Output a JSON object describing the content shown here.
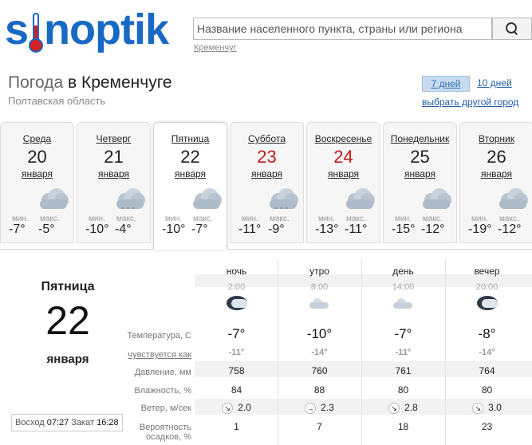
{
  "header": {
    "logo_pre": "s",
    "logo_post": "noptik",
    "search_placeholder": "Название населенного пункта, страны или региона",
    "recent_city": "Кременчуг"
  },
  "location": {
    "title_prefix": "Погода",
    "title_city": "в Кременчуге",
    "region": "Полтавская область"
  },
  "range": {
    "days7": "7 дней",
    "days10": "10 дней",
    "other_city": "выбрать другой город"
  },
  "days": [
    {
      "name": "Среда",
      "date": "20",
      "month": "января",
      "min_label": "мин.",
      "max_label": "макс.",
      "min": "-7°",
      "max": "-5°",
      "icon": "cloudy-icon",
      "weekend": false
    },
    {
      "name": "Четверг",
      "date": "21",
      "month": "января",
      "min_label": "мин.",
      "max_label": "макс.",
      "min": "-10°",
      "max": "-4°",
      "icon": "cloudy-snow-icon",
      "weekend": false
    },
    {
      "name": "Пятница",
      "date": "22",
      "month": "января",
      "min_label": "мин.",
      "max_label": "макс.",
      "min": "-10°",
      "max": "-7°",
      "icon": "cloudy-icon",
      "weekend": false
    },
    {
      "name": "Суббота",
      "date": "23",
      "month": "января",
      "min_label": "мин.",
      "max_label": "макс.",
      "min": "-11°",
      "max": "-9°",
      "icon": "cloudy-snow-icon",
      "weekend": true
    },
    {
      "name": "Воскресенье",
      "date": "24",
      "month": "января",
      "min_label": "мин.",
      "max_label": "макс.",
      "min": "-13°",
      "max": "-11°",
      "icon": "cloudy-icon",
      "weekend": true
    },
    {
      "name": "Понедельник",
      "date": "25",
      "month": "января",
      "min_label": "мин.",
      "max_label": "макс.",
      "min": "-15°",
      "max": "-12°",
      "icon": "cloudy-icon",
      "weekend": false
    },
    {
      "name": "Вторник",
      "date": "26",
      "month": "января",
      "min_label": "мин.",
      "max_label": "макс.",
      "min": "-19°",
      "max": "-12°",
      "icon": "cloudy-icon",
      "weekend": false
    }
  ],
  "detail": {
    "day_name": "Пятница",
    "day_num": "22",
    "month": "января",
    "sunrise_label": "Восход",
    "sunrise": "07:27",
    "sunset_label": "Закат",
    "sunset": "16:28",
    "labels": {
      "temp": "Температура, С",
      "feels": "чувствуется как",
      "pressure": "Давление, мм",
      "humidity": "Влажность, %",
      "wind": "Ветер, м/сек",
      "prob_1": "Вероятность",
      "prob_2": "осадков, %"
    },
    "periods": [
      {
        "name": "ночь",
        "time": "2:00",
        "icon": "night-cloud-icon",
        "temp": "-7°",
        "feels": "-11°",
        "pressure": "758",
        "humidity": "84",
        "wind_dir": "↘",
        "wind": "2.0",
        "prob": "1"
      },
      {
        "name": "утро",
        "time": "8:00",
        "icon": "light-cloud-icon",
        "temp": "-10°",
        "feels": "-14°",
        "pressure": "760",
        "humidity": "88",
        "wind_dir": "→",
        "wind": "2.3",
        "prob": "7"
      },
      {
        "name": "день",
        "time": "14:00",
        "icon": "light-cloud-icon",
        "temp": "-7°",
        "feels": "-11°",
        "pressure": "761",
        "humidity": "80",
        "wind_dir": "↘",
        "wind": "2.8",
        "prob": "18"
      },
      {
        "name": "вечер",
        "time": "20:00",
        "icon": "night-cloud-icon",
        "temp": "-8°",
        "feels": "-14°",
        "pressure": "764",
        "humidity": "80",
        "wind_dir": "↘",
        "wind": "3.0",
        "prob": "23"
      }
    ]
  },
  "colors": {
    "brand": "#1769c4",
    "weekend": "#c21a1a"
  }
}
